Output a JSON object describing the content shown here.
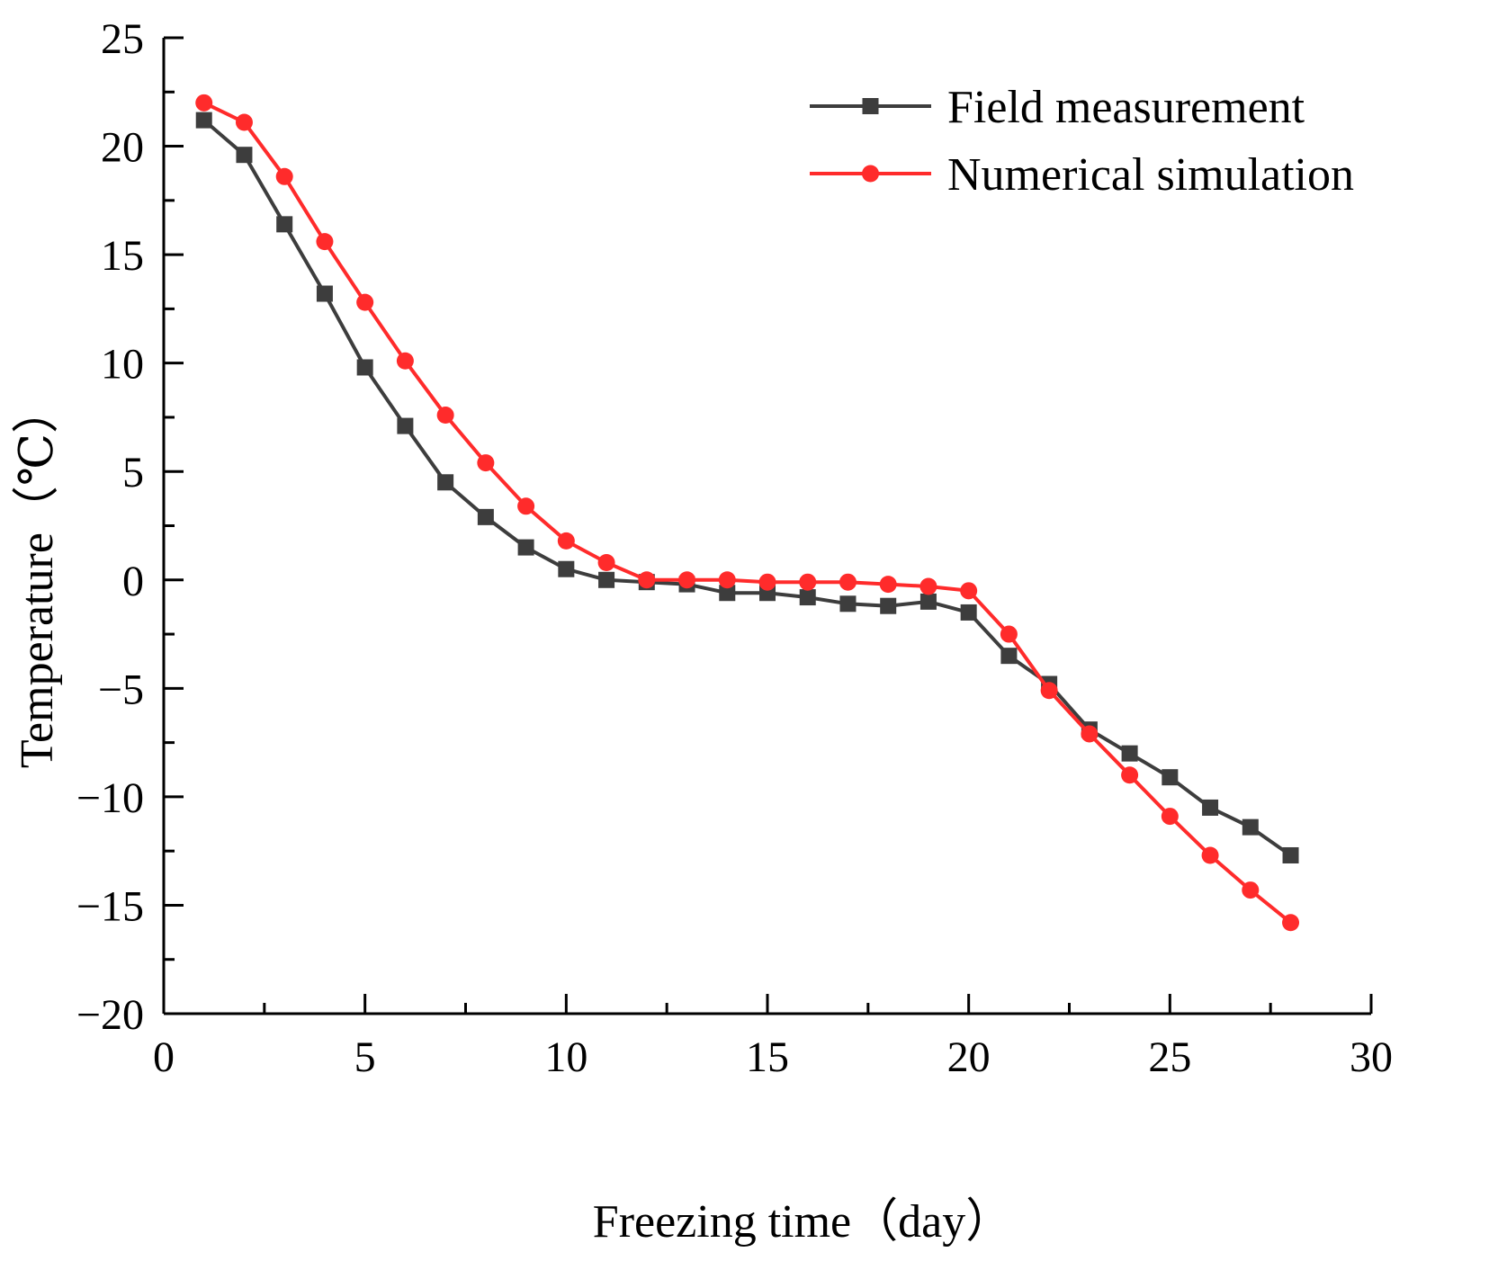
{
  "chart_data": {
    "type": "line",
    "title": "",
    "xlabel": "Freezing time（day）",
    "ylabel": "Temperature（℃）",
    "xlim": [
      0,
      30
    ],
    "ylim": [
      -20,
      25
    ],
    "xticks": [
      0,
      5,
      10,
      15,
      20,
      25,
      30
    ],
    "yticks": [
      -20,
      -15,
      -10,
      -5,
      0,
      5,
      10,
      15,
      20,
      25
    ],
    "xtick_labels": [
      "0",
      "5",
      "10",
      "15",
      "20",
      "25",
      "30"
    ],
    "ytick_labels": [
      "−20",
      "−15",
      "−10",
      "−5",
      "0",
      "5",
      "10",
      "15",
      "20",
      "25"
    ],
    "grid": false,
    "legend_position": "top-right",
    "x": [
      1,
      2,
      3,
      4,
      5,
      6,
      7,
      8,
      9,
      10,
      11,
      12,
      13,
      14,
      15,
      16,
      17,
      18,
      19,
      20,
      21,
      22,
      23,
      24,
      25,
      26,
      27,
      28
    ],
    "series": [
      {
        "name": "Field measurement",
        "color": "#3d3d3d",
        "marker": "square",
        "values": [
          21.2,
          19.6,
          16.4,
          13.2,
          9.8,
          7.1,
          4.5,
          2.9,
          1.5,
          0.5,
          0.0,
          -0.1,
          -0.2,
          -0.6,
          -0.6,
          -0.8,
          -1.1,
          -1.2,
          -1.0,
          -1.5,
          -3.5,
          -4.8,
          -6.9,
          -8.0,
          -9.1,
          -10.5,
          -11.4,
          -12.7
        ]
      },
      {
        "name": "Numerical simulation",
        "color": "#ff2b2b",
        "marker": "circle",
        "values": [
          22.0,
          21.1,
          18.6,
          15.6,
          12.8,
          10.1,
          7.6,
          5.4,
          3.4,
          1.8,
          0.8,
          0.0,
          0.0,
          0.0,
          -0.1,
          -0.1,
          -0.1,
          -0.2,
          -0.3,
          -0.5,
          -2.5,
          -5.1,
          -7.1,
          -9.0,
          -10.9,
          -12.7,
          -14.3,
          -15.8
        ]
      }
    ]
  }
}
